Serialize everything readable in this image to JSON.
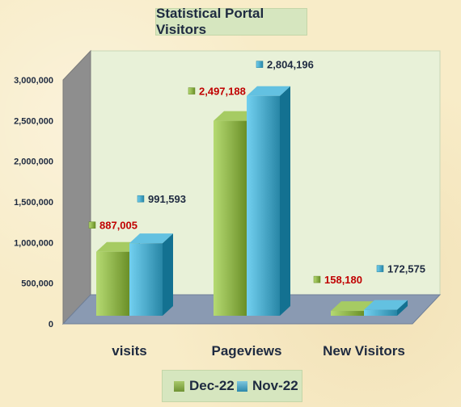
{
  "chart_data": {
    "type": "bar",
    "title": "Statistical Portal Visitors",
    "categories": [
      "visits",
      "Pageviews",
      "New Visitors"
    ],
    "series": [
      {
        "name": "Dec-22",
        "values": [
          887005,
          2497188,
          158180
        ],
        "labels": [
          "887,005",
          "2,497,188",
          "158,180"
        ],
        "color": "#8db24a",
        "label_color": "#c00000"
      },
      {
        "name": "Nov-22",
        "values": [
          991593,
          2804196,
          172575
        ],
        "labels": [
          "991,593",
          "2,804,196",
          "172,575"
        ],
        "color": "#4aa8c8",
        "label_color": "#1e2a40"
      }
    ],
    "ylim": [
      0,
      3000000
    ],
    "yticks": [
      0,
      500000,
      1000000,
      1500000,
      2000000,
      2500000,
      3000000
    ],
    "ytick_labels": [
      "0",
      "500,000",
      "1,000,000",
      "1,500,000",
      "2,000,000",
      "2,500,000",
      "3,000,000"
    ],
    "legend_position": "bottom",
    "grid": false,
    "wall_color": "#e8f1d8",
    "floor_color": "#8a9ab2",
    "side_wall_color": "#8e8e8e"
  }
}
